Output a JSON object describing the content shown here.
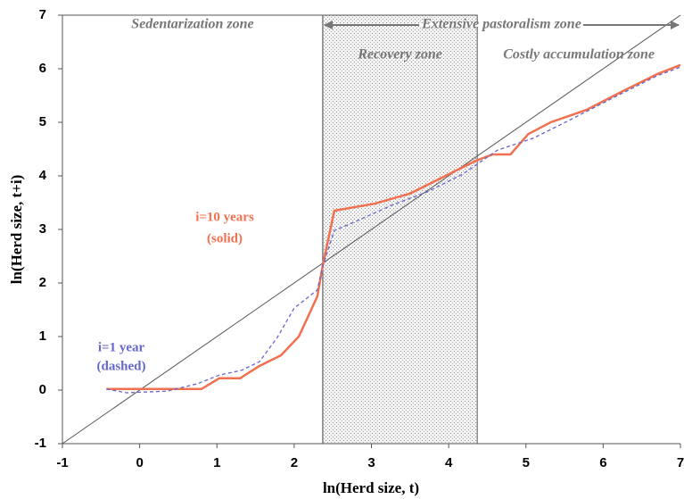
{
  "chart_data": {
    "type": "line",
    "xlabel": "ln(Herd size, t)",
    "ylabel": "ln(Herd size, t+i)",
    "xlim": [
      -1,
      7
    ],
    "ylim": [
      -1,
      7
    ],
    "xticks": [
      -1,
      0,
      1,
      2,
      3,
      4,
      5,
      6,
      7
    ],
    "yticks": [
      -1,
      0,
      1,
      2,
      3,
      4,
      5,
      6,
      7
    ],
    "series": [
      {
        "color": "#555555",
        "style": "solid",
        "x": [
          -1,
          7
        ],
        "values": [
          -1,
          7
        ]
      },
      {
        "color": "#f07050",
        "style": "solid",
        "x": [
          -0.43,
          0.8,
          1.03,
          1.3,
          1.55,
          1.83,
          2.06,
          2.3,
          2.37,
          2.52,
          3.04,
          3.5,
          4.0,
          4.35,
          4.57,
          4.8,
          5.03,
          5.32,
          5.78,
          6.24,
          6.7,
          7.0
        ],
        "values": [
          0.02,
          0.02,
          0.22,
          0.22,
          0.45,
          0.65,
          1.0,
          1.75,
          2.33,
          3.35,
          3.48,
          3.67,
          4.03,
          4.28,
          4.4,
          4.4,
          4.78,
          5.0,
          5.23,
          5.57,
          5.9,
          6.07
        ]
      },
      {
        "color": "#6666cc",
        "style": "dashed",
        "x": [
          -0.43,
          -0.17,
          0.35,
          0.75,
          1.03,
          1.32,
          1.55,
          1.78,
          2.0,
          2.3,
          2.37,
          2.52,
          2.8,
          3.26,
          3.72,
          4.18,
          4.63,
          5.09,
          5.55,
          6.12,
          6.7,
          7.0
        ],
        "values": [
          0.02,
          -0.05,
          -0.02,
          0.12,
          0.28,
          0.37,
          0.53,
          0.98,
          1.53,
          1.87,
          2.32,
          2.98,
          3.15,
          3.45,
          3.7,
          4.03,
          4.48,
          4.7,
          5.03,
          5.45,
          5.87,
          6.03
        ]
      }
    ],
    "zones": [
      {
        "label": "Sedentarization zone",
        "xrange": [
          -1,
          2.37
        ]
      },
      {
        "label": "Extensive pastoralism zone",
        "xrange": [
          2.37,
          7
        ]
      },
      {
        "label": "Recovery zone",
        "xrange": [
          2.37,
          4.37
        ],
        "shaded": true
      },
      {
        "label": "Costly accumulation zone",
        "xrange": [
          4.37,
          7
        ]
      }
    ],
    "annotations": [
      {
        "lines": [
          "i=10 years",
          "(solid)"
        ],
        "color": "#f07050"
      },
      {
        "lines": [
          "i=1 year",
          "(dashed)"
        ],
        "color": "#6666cc"
      }
    ]
  }
}
